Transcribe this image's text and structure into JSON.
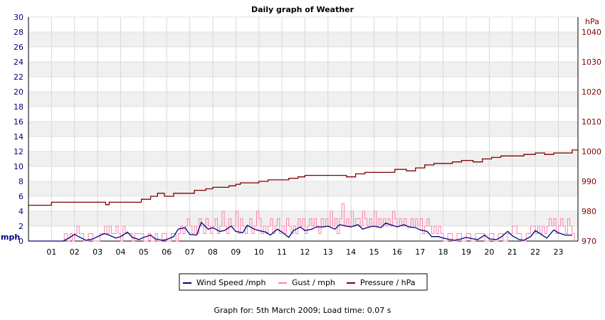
{
  "chart_data": {
    "type": "line",
    "title": "Daily graph of Weather",
    "x_ticks": [
      "01",
      "02",
      "03",
      "04",
      "05",
      "06",
      "07",
      "08",
      "09",
      "10",
      "11",
      "12",
      "13",
      "14",
      "15",
      "16",
      "17",
      "18",
      "19",
      "20",
      "21",
      "22",
      "23"
    ],
    "x_range_hours": [
      0,
      23.85
    ],
    "left_axis": {
      "label": "mph",
      "range": [
        0,
        30
      ],
      "ticks": [
        0,
        2,
        4,
        6,
        8,
        10,
        12,
        14,
        16,
        18,
        20,
        22,
        24,
        26,
        28,
        30
      ],
      "color": "#000080"
    },
    "right_axis": {
      "label": "hPa",
      "range": [
        970,
        1045
      ],
      "ticks": [
        970,
        980,
        990,
        1000,
        1010,
        1020,
        1030,
        1040
      ],
      "color": "#800000"
    },
    "grid": true,
    "legend_position": "bottom-center",
    "series": [
      {
        "name": "Wind Speed /mph",
        "axis": "left",
        "color": "#000080",
        "x": [
          0,
          1.5,
          1.8,
          2.0,
          2.3,
          2.5,
          2.8,
          3.0,
          3.3,
          3.5,
          3.8,
          4.0,
          4.3,
          4.5,
          4.8,
          5.0,
          5.3,
          5.5,
          5.8,
          6.0,
          6.3,
          6.5,
          6.8,
          7.0,
          7.3,
          7.5,
          7.8,
          8.0,
          8.3,
          8.5,
          8.8,
          9.0,
          9.3,
          9.5,
          9.8,
          10.0,
          10.3,
          10.5,
          10.8,
          11.0,
          11.3,
          11.5,
          11.8,
          12.0,
          12.3,
          12.5,
          12.8,
          13.0,
          13.3,
          13.5,
          13.8,
          14.0,
          14.3,
          14.5,
          14.8,
          15.0,
          15.3,
          15.5,
          15.8,
          16.0,
          16.3,
          16.5,
          16.8,
          17.0,
          17.3,
          17.5,
          17.8,
          18.0,
          18.3,
          18.5,
          18.8,
          19.0,
          19.3,
          19.5,
          19.8,
          20.0,
          20.3,
          20.5,
          20.8,
          21.0,
          21.3,
          21.5,
          21.8,
          22.0,
          22.3,
          22.5,
          22.8,
          23.0,
          23.3,
          23.6
        ],
        "values": [
          0,
          0,
          0.5,
          0.9,
          0.4,
          0.1,
          0.3,
          0.6,
          1.0,
          0.8,
          0.4,
          0.6,
          1.2,
          0.5,
          0.2,
          0.5,
          0.8,
          0.3,
          0.1,
          0.2,
          0.6,
          1.6,
          1.8,
          0.9,
          0.8,
          2.5,
          1.6,
          1.8,
          1.3,
          1.4,
          2.0,
          1.3,
          1.1,
          2.1,
          1.6,
          1.4,
          1.2,
          0.8,
          1.6,
          1.2,
          0.5,
          1.4,
          1.9,
          1.4,
          1.6,
          1.9,
          1.9,
          2.0,
          1.6,
          2.2,
          2.0,
          1.9,
          2.2,
          1.6,
          1.9,
          2.0,
          1.8,
          2.4,
          2.1,
          1.9,
          2.2,
          1.9,
          1.8,
          1.5,
          1.3,
          0.6,
          0.6,
          0.4,
          0.2,
          0.1,
          0.3,
          0.5,
          0.3,
          0.2,
          0.8,
          0.3,
          0.2,
          0.5,
          1.3,
          0.7,
          0.2,
          0.1,
          0.6,
          1.4,
          0.8,
          0.4,
          1.5,
          1.1,
          0.8,
          0.8
        ]
      },
      {
        "name": "Gust / mph",
        "axis": "left",
        "color": "#ff80b0",
        "x": [
          0,
          1.5,
          1.55,
          1.7,
          1.8,
          1.9,
          2.0,
          2.1,
          2.2,
          2.4,
          2.6,
          2.8,
          3.0,
          3.1,
          3.3,
          3.4,
          3.5,
          3.6,
          3.8,
          3.9,
          4.0,
          4.1,
          4.2,
          4.4,
          4.5,
          4.6,
          4.8,
          5.0,
          5.2,
          5.3,
          5.5,
          5.6,
          5.8,
          6.0,
          6.2,
          6.4,
          6.5,
          6.6,
          6.7,
          6.8,
          6.9,
          7.0,
          7.1,
          7.2,
          7.3,
          7.4,
          7.5,
          7.6,
          7.7,
          7.8,
          7.9,
          8.0,
          8.1,
          8.2,
          8.3,
          8.4,
          8.5,
          8.6,
          8.7,
          8.8,
          8.9,
          9.0,
          9.1,
          9.2,
          9.3,
          9.4,
          9.5,
          9.6,
          9.7,
          9.8,
          9.9,
          10.0,
          10.1,
          10.2,
          10.3,
          10.4,
          10.5,
          10.6,
          10.7,
          10.8,
          10.9,
          11.0,
          11.1,
          11.2,
          11.3,
          11.4,
          11.5,
          11.6,
          11.7,
          11.8,
          11.9,
          12.0,
          12.1,
          12.2,
          12.3,
          12.4,
          12.5,
          12.6,
          12.7,
          12.8,
          12.9,
          13.0,
          13.1,
          13.2,
          13.3,
          13.4,
          13.5,
          13.6,
          13.7,
          13.8,
          13.9,
          14.0,
          14.1,
          14.2,
          14.3,
          14.4,
          14.5,
          14.6,
          14.7,
          14.8,
          14.9,
          15.0,
          15.1,
          15.2,
          15.3,
          15.4,
          15.5,
          15.6,
          15.7,
          15.8,
          15.9,
          16.0,
          16.1,
          16.2,
          16.3,
          16.4,
          16.5,
          16.6,
          16.7,
          16.8,
          16.9,
          17.0,
          17.1,
          17.2,
          17.3,
          17.4,
          17.5,
          17.6,
          17.7,
          17.8,
          17.9,
          18.0,
          18.2,
          18.4,
          18.6,
          18.8,
          19.0,
          19.2,
          19.4,
          19.6,
          19.8,
          20.0,
          20.2,
          20.4,
          20.6,
          20.8,
          21.0,
          21.2,
          21.4,
          21.6,
          21.8,
          22.0,
          22.1,
          22.2,
          22.3,
          22.4,
          22.5,
          22.6,
          22.7,
          22.8,
          22.9,
          23.0,
          23.1,
          23.2,
          23.3,
          23.4,
          23.5,
          23.6,
          23.7
        ],
        "values": [
          0,
          0,
          1,
          0,
          1,
          0,
          1,
          2,
          1,
          0,
          1,
          0,
          0,
          1,
          2,
          1,
          2,
          1,
          2,
          1,
          0,
          2,
          1,
          1,
          0,
          1,
          1,
          0,
          1,
          0,
          1,
          0,
          1,
          0,
          1,
          0,
          1,
          2,
          1,
          2,
          3,
          2,
          1,
          2,
          1,
          3,
          2,
          1,
          3,
          2,
          1,
          2,
          3,
          1,
          2,
          4,
          2,
          1,
          3,
          2,
          2,
          4,
          1,
          3,
          2,
          1,
          2,
          3,
          1,
          2,
          4,
          3,
          1,
          2,
          1,
          2,
          3,
          1,
          2,
          3,
          1,
          2,
          1,
          3,
          2,
          1,
          2,
          1,
          3,
          2,
          3,
          1,
          2,
          3,
          2,
          3,
          2,
          1,
          3,
          2,
          3,
          2,
          4,
          2,
          3,
          1,
          3,
          5,
          2,
          3,
          2,
          4,
          2,
          3,
          3,
          2,
          4,
          3,
          2,
          3,
          2,
          4,
          2,
          3,
          2,
          3,
          2,
          3,
          2,
          4,
          3,
          2,
          3,
          2,
          3,
          2,
          2,
          3,
          2,
          3,
          2,
          3,
          1,
          2,
          3,
          2,
          1,
          2,
          1,
          2,
          1,
          0,
          1,
          0,
          1,
          0,
          1,
          0,
          1,
          1,
          0,
          1,
          0,
          1,
          0,
          1,
          2,
          1,
          0,
          1,
          2,
          1,
          2,
          1,
          2,
          1,
          2,
          3,
          2,
          3,
          1,
          2,
          3,
          2,
          1,
          3,
          2,
          1,
          0
        ]
      },
      {
        "name": "Pressure / hPa",
        "axis": "right",
        "color": "#800000",
        "x": [
          0,
          0.9,
          1.0,
          3.2,
          3.35,
          3.5,
          4.5,
          4.9,
          5.1,
          5.3,
          5.6,
          5.9,
          6.1,
          6.3,
          6.9,
          7.2,
          7.5,
          7.7,
          8.0,
          8.3,
          8.7,
          9.0,
          9.2,
          10.0,
          10.4,
          10.9,
          11.3,
          11.7,
          12.0,
          12.4,
          12.7,
          13.1,
          13.4,
          13.8,
          14.2,
          14.6,
          15.0,
          15.3,
          15.9,
          16.4,
          16.8,
          17.2,
          17.6,
          18.0,
          18.4,
          18.8,
          19.3,
          19.7,
          20.1,
          20.5,
          21.2,
          21.5,
          22.0,
          22.4,
          22.8,
          23.1,
          23.6,
          23.85
        ],
        "values": [
          982,
          982,
          983,
          983,
          982.2,
          983,
          983,
          984,
          984,
          985,
          986,
          985,
          985,
          986,
          986,
          987,
          987,
          987.5,
          988,
          988,
          988.5,
          989,
          989.5,
          990,
          990.5,
          990.5,
          991,
          991.5,
          992,
          992,
          992,
          992,
          992,
          991.5,
          992.5,
          993,
          993,
          993,
          994,
          993.5,
          994.5,
          995.5,
          996,
          996,
          996.5,
          997,
          996.5,
          997.5,
          998,
          998.5,
          998.5,
          999,
          999.5,
          999,
          999.5,
          999.5,
          1000.5,
          1000.5
        ]
      }
    ]
  },
  "footer_text": "Graph for: 5th March 2009; Load time: 0.07 s"
}
